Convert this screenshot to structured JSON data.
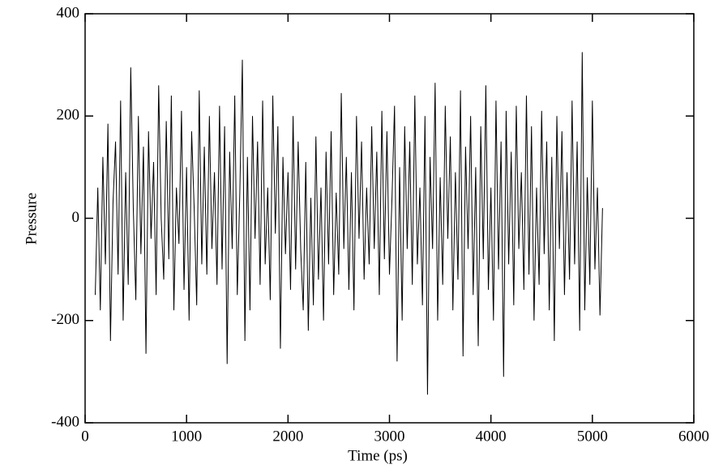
{
  "chart_data": {
    "type": "line",
    "xlabel": "Time (ps)",
    "ylabel": "Pressure",
    "color": "#000000",
    "x": [
      100,
      125,
      150,
      175,
      200,
      225,
      250,
      275,
      300,
      325,
      350,
      375,
      400,
      425,
      450,
      475,
      500,
      525,
      550,
      575,
      600,
      625,
      650,
      675,
      700,
      725,
      750,
      775,
      800,
      825,
      850,
      875,
      900,
      925,
      950,
      975,
      1000,
      1025,
      1050,
      1075,
      1100,
      1125,
      1150,
      1175,
      1200,
      1225,
      1250,
      1275,
      1300,
      1325,
      1350,
      1375,
      1400,
      1425,
      1450,
      1475,
      1500,
      1525,
      1550,
      1575,
      1600,
      1625,
      1650,
      1675,
      1700,
      1725,
      1750,
      1775,
      1800,
      1825,
      1850,
      1875,
      1900,
      1925,
      1950,
      1975,
      2000,
      2025,
      2050,
      2075,
      2100,
      2125,
      2150,
      2175,
      2200,
      2225,
      2250,
      2275,
      2300,
      2325,
      2350,
      2375,
      2400,
      2425,
      2450,
      2475,
      2500,
      2525,
      2550,
      2575,
      2600,
      2625,
      2650,
      2675,
      2700,
      2725,
      2750,
      2775,
      2800,
      2825,
      2850,
      2875,
      2900,
      2925,
      2950,
      2975,
      3000,
      3025,
      3050,
      3075,
      3100,
      3125,
      3150,
      3175,
      3200,
      3225,
      3250,
      3275,
      3300,
      3325,
      3350,
      3375,
      3400,
      3425,
      3450,
      3475,
      3500,
      3525,
      3550,
      3575,
      3600,
      3625,
      3650,
      3675,
      3700,
      3725,
      3750,
      3775,
      3800,
      3825,
      3850,
      3875,
      3900,
      3925,
      3950,
      3975,
      4000,
      4025,
      4050,
      4075,
      4100,
      4125,
      4150,
      4175,
      4200,
      4225,
      4250,
      4275,
      4300,
      4325,
      4350,
      4375,
      4400,
      4425,
      4450,
      4475,
      4500,
      4525,
      4550,
      4575,
      4600,
      4625,
      4650,
      4675,
      4700,
      4725,
      4750,
      4775,
      4800,
      4825,
      4850,
      4875,
      4900,
      4925,
      4950,
      4975,
      5000,
      5025,
      5050,
      5075,
      5100
    ],
    "values": [
      -150,
      60,
      -180,
      120,
      -90,
      185,
      -240,
      30,
      150,
      -110,
      230,
      -200,
      90,
      -130,
      295,
      20,
      -160,
      200,
      -70,
      140,
      -265,
      170,
      -40,
      110,
      -150,
      260,
      0,
      -120,
      190,
      -80,
      240,
      -180,
      60,
      -50,
      210,
      -140,
      100,
      -200,
      170,
      20,
      -170,
      250,
      -90,
      140,
      -110,
      200,
      -60,
      90,
      -130,
      220,
      -100,
      180,
      -285,
      130,
      -60,
      240,
      -150,
      50,
      310,
      -240,
      120,
      -180,
      200,
      -40,
      150,
      -130,
      230,
      -90,
      60,
      -160,
      240,
      -30,
      180,
      -255,
      120,
      -70,
      90,
      -140,
      200,
      -100,
      150,
      -60,
      -180,
      110,
      -220,
      40,
      -170,
      160,
      -120,
      60,
      -200,
      130,
      -90,
      170,
      -150,
      50,
      -110,
      245,
      -60,
      120,
      -140,
      90,
      -180,
      200,
      -40,
      150,
      -120,
      60,
      -90,
      180,
      -60,
      130,
      -150,
      210,
      -80,
      170,
      -110,
      40,
      220,
      -280,
      100,
      -200,
      180,
      -60,
      150,
      -130,
      240,
      -90,
      60,
      -170,
      200,
      -345,
      120,
      -60,
      265,
      -200,
      80,
      -130,
      220,
      -40,
      160,
      -180,
      90,
      -120,
      250,
      -270,
      140,
      -60,
      200,
      -150,
      100,
      -250,
      180,
      -80,
      260,
      -140,
      60,
      -200,
      230,
      -100,
      150,
      -310,
      210,
      -90,
      130,
      -170,
      220,
      -60,
      90,
      -140,
      240,
      -110,
      180,
      -200,
      60,
      -130,
      210,
      -70,
      150,
      -180,
      120,
      -240,
      200,
      -60,
      170,
      -150,
      90,
      -120,
      230,
      -90,
      150,
      -220,
      325,
      -180,
      80,
      -130,
      230,
      -100,
      60,
      -190,
      20
    ],
    "xlim": [
      0,
      6000
    ],
    "xticks": [
      0,
      1000,
      2000,
      3000,
      4000,
      5000,
      6000
    ],
    "ylim": [
      -400,
      400
    ],
    "yticks": [
      -400,
      -200,
      0,
      200,
      400
    ]
  }
}
